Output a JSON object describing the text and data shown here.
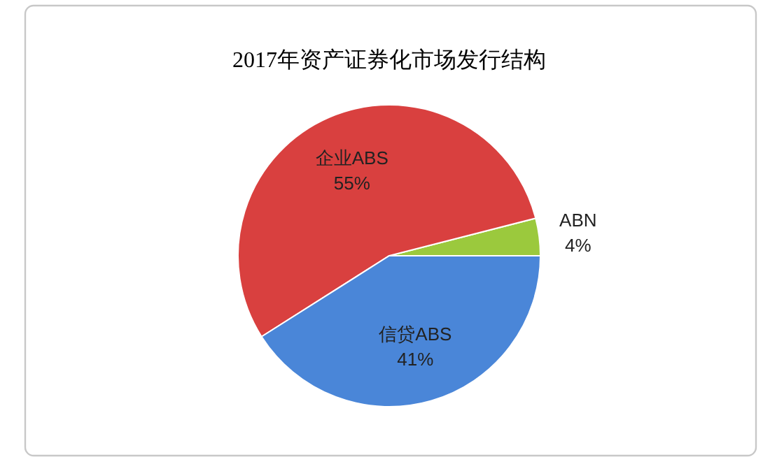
{
  "chart_data": {
    "type": "pie",
    "title": "2017年资产证券化市场发行结构",
    "categories": [
      "ABN",
      "企业ABS",
      "信贷ABS"
    ],
    "values": [
      4,
      55,
      41
    ],
    "value_labels": [
      "4%",
      "55%",
      "41%"
    ],
    "colors": [
      "#9bc93d",
      "#d9403f",
      "#4a86d8"
    ]
  }
}
